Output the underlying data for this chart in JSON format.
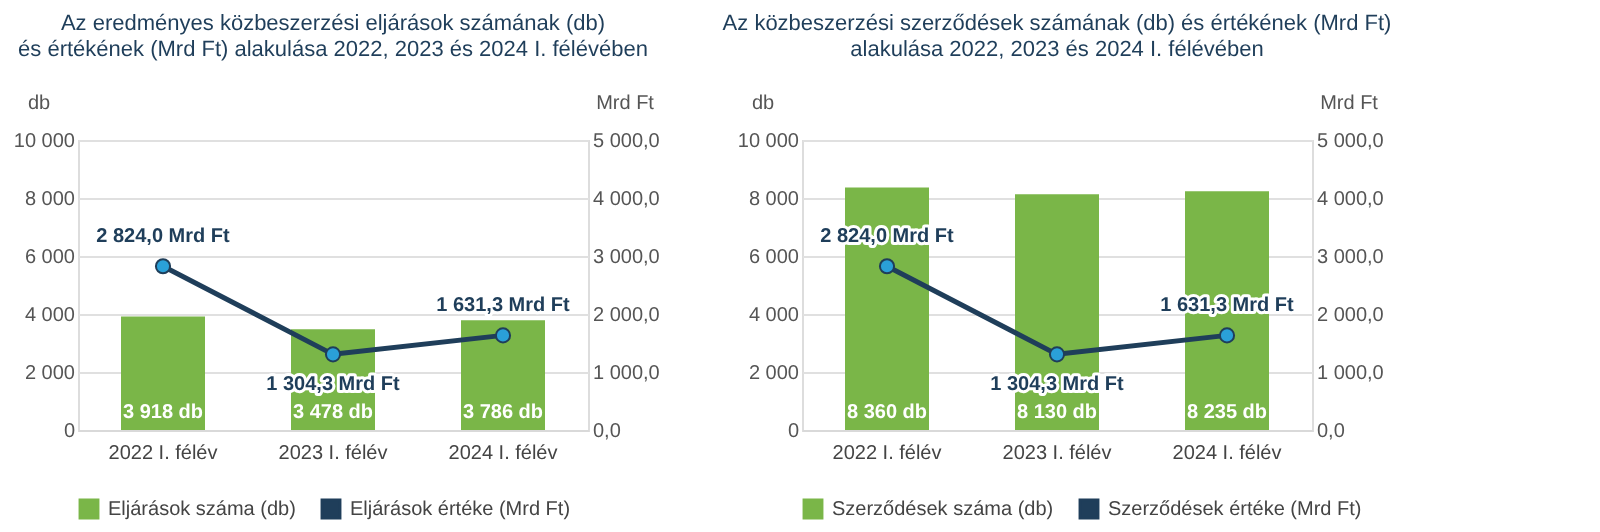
{
  "chart_data": [
    {
      "type": "bar",
      "title": "Az eredményes közbeszerzési eljárások számának (db)\nés értékének (Mrd Ft) alakulása 2022, 2023 és 2024 I. félévében",
      "ylabel": "db",
      "y2label": "Mrd Ft",
      "categories": [
        "2022 I. félév",
        "2023 I. félév",
        "2024 I. félév"
      ],
      "series": [
        {
          "name": "Eljárások száma (db)",
          "color": "#7ab648",
          "values": [
            3918,
            3478,
            3786
          ],
          "value_labels": [
            "3 918 db",
            "3 478 db",
            "3 786 db"
          ]
        },
        {
          "name": "Eljárások értéke (Mrd Ft)",
          "type": "line",
          "axis": "y2",
          "color": "#1f3e5a",
          "marker": "circle",
          "values": [
            2824.0,
            1304.3,
            1631.3
          ],
          "value_labels": [
            "2 824,0 Mrd Ft",
            "1 304,3 Mrd Ft",
            "1 631,3 Mrd Ft"
          ]
        }
      ],
      "ylim": [
        0,
        10000
      ],
      "yticks": [
        0,
        {
          "value": 2000,
          "label": "2 000"
        },
        {
          "value": 4000,
          "label": "4 000"
        },
        {
          "value": 6000,
          "label": "6 000"
        },
        {
          "value": 8000,
          "label": "8 000"
        },
        {
          "value": 10000,
          "label": "10 000"
        }
      ],
      "y2lim": [
        0,
        5000
      ],
      "y2ticks": [
        {
          "value": 0,
          "label": "0,0"
        },
        {
          "value": 1000,
          "label": "1 000,0"
        },
        {
          "value": 2000,
          "label": "2 000,0"
        },
        {
          "value": 3000,
          "label": "3 000,0"
        },
        {
          "value": 4000,
          "label": "4 000,0"
        },
        {
          "value": 5000,
          "label": "5 000,0"
        }
      ],
      "grid": "y",
      "legend": "bottom"
    },
    {
      "type": "bar",
      "title": "Az közbeszerzési szerződések számának (db) és értékének (Mrd Ft)\nalakulása 2022, 2023 és 2024 I. félévében",
      "ylabel": "db",
      "y2label": "Mrd Ft",
      "categories": [
        "2022 I. félév",
        "2023 I. félév",
        "2024 I. félév"
      ],
      "series": [
        {
          "name": "Szerződések száma (db)",
          "color": "#7ab648",
          "values": [
            8360,
            8130,
            8235
          ],
          "value_labels": [
            "8 360 db",
            "8 130 db",
            "8 235 db"
          ]
        },
        {
          "name": "Szerződések értéke (Mrd Ft)",
          "type": "line",
          "axis": "y2",
          "color": "#1f3e5a",
          "marker": "circle",
          "values": [
            2824.0,
            1304.3,
            1631.3
          ],
          "value_labels": [
            "2 824,0 Mrd Ft",
            "1 304,3 Mrd Ft",
            "1 631,3 Mrd Ft"
          ]
        }
      ],
      "ylim": [
        0,
        10000
      ],
      "yticks": [
        0,
        {
          "value": 2000,
          "label": "2 000"
        },
        {
          "value": 4000,
          "label": "4 000"
        },
        {
          "value": 6000,
          "label": "6 000"
        },
        {
          "value": 8000,
          "label": "8 000"
        },
        {
          "value": 10000,
          "label": "10 000"
        }
      ],
      "y2lim": [
        0,
        5000
      ],
      "y2ticks": [
        {
          "value": 0,
          "label": "0,0"
        },
        {
          "value": 1000,
          "label": "1 000,0"
        },
        {
          "value": 2000,
          "label": "2 000,0"
        },
        {
          "value": 3000,
          "label": "3 000,0"
        },
        {
          "value": 4000,
          "label": "4 000,0"
        },
        {
          "value": 5000,
          "label": "5 000,0"
        }
      ],
      "grid": "y",
      "legend": "bottom"
    }
  ]
}
